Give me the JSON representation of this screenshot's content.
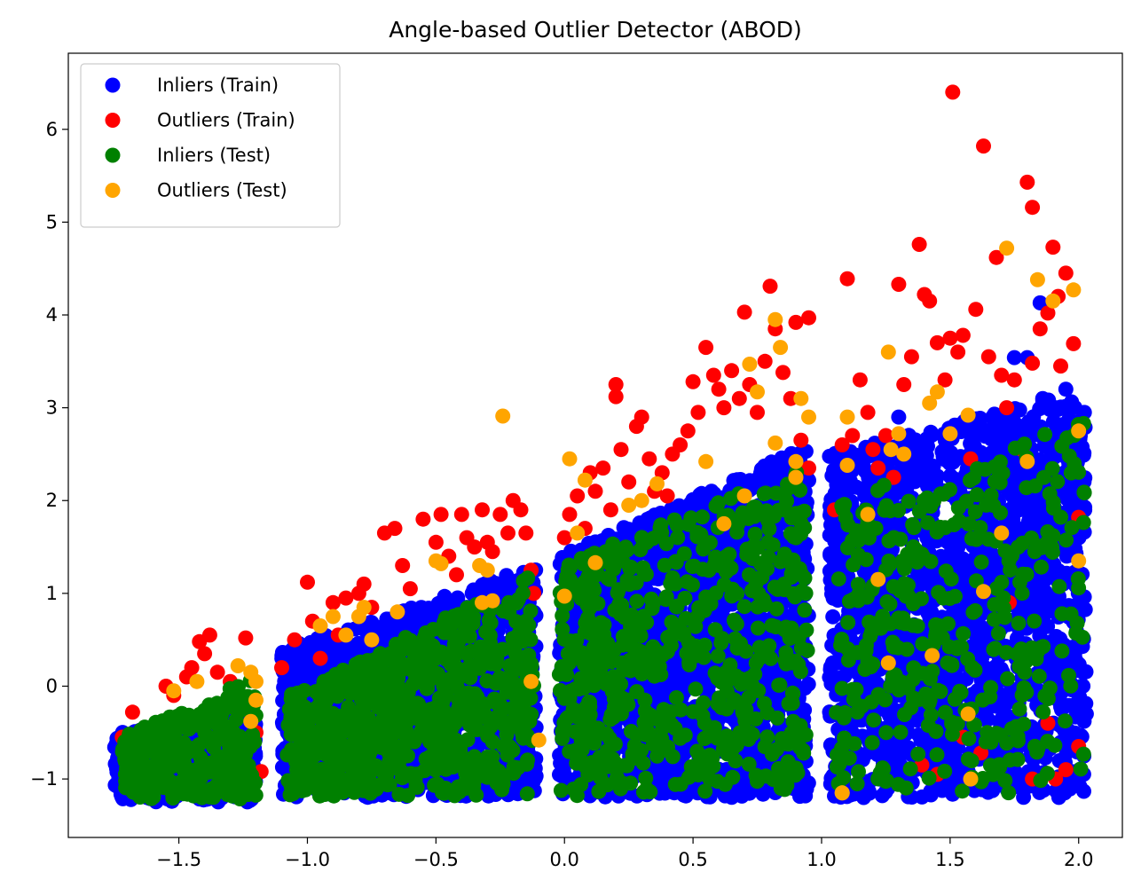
{
  "chart_data": {
    "type": "scatter",
    "title": "Angle-based Outlier Detector (ABOD)",
    "xlabel": "",
    "ylabel": "",
    "xlim": [
      -1.93,
      2.17
    ],
    "ylim": [
      -1.63,
      6.82
    ],
    "xticks": [
      -1.5,
      -1.0,
      -0.5,
      0.0,
      0.5,
      1.0,
      1.5,
      2.0
    ],
    "xtick_labels": [
      "−1.5",
      "−1.0",
      "−0.5",
      "0.0",
      "0.5",
      "1.0",
      "1.5",
      "2.0"
    ],
    "yticks": [
      -1,
      0,
      1,
      2,
      3,
      4,
      5,
      6
    ],
    "ytick_labels": [
      "−1",
      "0",
      "1",
      "2",
      "3",
      "4",
      "5",
      "6"
    ],
    "grid": false,
    "legend_position": "top-left",
    "series": [
      {
        "name": "Inliers (Train)",
        "color": "#0000ff",
        "clusters": [
          {
            "x": [
              -1.75,
              -1.2
            ],
            "y_min": -1.25,
            "y_max_left": -0.5,
            "y_max_right": -0.3,
            "count": 500
          },
          {
            "x": [
              -1.1,
              -0.11
            ],
            "y_min": -1.2,
            "y_max_left": 0.4,
            "y_max_right": 1.3,
            "count": 1400
          },
          {
            "x": [
              -0.02,
              0.95
            ],
            "y_min": -1.2,
            "y_max_left": 1.4,
            "y_max_right": 2.6,
            "count": 1800
          },
          {
            "x": [
              1.03,
              2.03
            ],
            "y_min": -1.2,
            "y_max_left": 2.5,
            "y_max_right": 3.2,
            "count": 1800
          }
        ],
        "highlighted_points": [
          [
            1.85,
            4.13
          ],
          [
            1.75,
            3.54
          ],
          [
            1.8,
            3.54
          ],
          [
            1.86,
            3.1
          ],
          [
            1.95,
            3.2
          ],
          [
            1.3,
            2.9
          ]
        ]
      },
      {
        "name": "Outliers (Train)",
        "color": "#ff0000",
        "x": [
          -1.68,
          -1.72,
          -1.45,
          -1.52,
          -1.55,
          -1.42,
          -1.38,
          -1.4,
          -1.47,
          -1.35,
          -1.3,
          -1.24,
          -1.25,
          -1.2,
          -1.18,
          -1.1,
          -1.05,
          -1.0,
          -0.98,
          -0.95,
          -0.9,
          -0.88,
          -0.85,
          -0.8,
          -0.78,
          -0.75,
          -0.7,
          -0.66,
          -0.63,
          -0.6,
          -0.55,
          -0.5,
          -0.48,
          -0.45,
          -0.42,
          -0.4,
          -0.38,
          -0.35,
          -0.32,
          -0.3,
          -0.28,
          -0.25,
          -0.22,
          -0.2,
          -0.17,
          -0.15,
          -0.13,
          -0.12,
          0.0,
          0.02,
          0.05,
          0.08,
          0.1,
          0.12,
          0.15,
          0.18,
          0.2,
          0.2,
          0.22,
          0.25,
          0.28,
          0.3,
          0.33,
          0.35,
          0.38,
          0.4,
          0.42,
          0.45,
          0.48,
          0.5,
          0.52,
          0.55,
          0.58,
          0.6,
          0.62,
          0.65,
          0.68,
          0.7,
          0.72,
          0.75,
          0.78,
          0.8,
          0.82,
          0.85,
          0.88,
          0.9,
          0.92,
          0.95,
          0.95,
          1.05,
          1.08,
          1.1,
          1.12,
          1.15,
          1.18,
          1.2,
          1.22,
          1.25,
          1.28,
          1.3,
          1.32,
          1.35,
          1.38,
          1.4,
          1.42,
          1.45,
          1.48,
          1.5,
          1.51,
          1.53,
          1.55,
          1.58,
          1.6,
          1.63,
          1.65,
          1.68,
          1.7,
          1.72,
          1.75,
          1.78,
          1.8,
          1.82,
          1.82,
          1.85,
          1.88,
          1.9,
          1.92,
          1.93,
          1.95,
          1.98,
          2.0,
          2.0,
          1.39,
          1.45,
          1.55,
          1.62,
          1.82,
          1.91,
          1.95,
          1.88,
          1.73
        ],
        "y": [
          -0.28,
          -0.55,
          0.2,
          -0.1,
          0.0,
          0.48,
          0.55,
          0.35,
          0.1,
          0.15,
          0.05,
          0.52,
          -0.25,
          -0.5,
          -0.92,
          0.2,
          0.5,
          1.12,
          0.7,
          0.3,
          0.9,
          0.55,
          0.95,
          1.0,
          1.1,
          0.85,
          1.65,
          1.7,
          1.3,
          1.05,
          1.8,
          1.55,
          1.85,
          1.4,
          1.2,
          1.85,
          1.6,
          1.5,
          1.9,
          1.55,
          1.45,
          1.85,
          1.65,
          2.0,
          1.9,
          1.65,
          1.25,
          1.0,
          1.6,
          1.85,
          2.05,
          1.7,
          2.3,
          2.1,
          2.35,
          1.9,
          3.25,
          3.12,
          2.55,
          2.2,
          2.8,
          2.9,
          2.45,
          2.1,
          2.3,
          2.05,
          2.5,
          2.6,
          2.75,
          3.28,
          2.95,
          3.65,
          3.35,
          3.2,
          3.0,
          3.4,
          3.1,
          4.03,
          3.25,
          2.95,
          3.5,
          4.31,
          3.85,
          3.38,
          3.1,
          3.92,
          2.65,
          3.97,
          2.35,
          1.9,
          2.6,
          4.39,
          2.7,
          3.3,
          2.95,
          2.55,
          2.35,
          2.7,
          2.25,
          4.33,
          3.25,
          3.55,
          4.76,
          4.22,
          4.15,
          3.7,
          3.3,
          3.75,
          6.4,
          3.6,
          3.78,
          2.45,
          4.06,
          5.82,
          3.55,
          4.62,
          3.35,
          3.0,
          3.3,
          2.55,
          5.43,
          5.16,
          3.48,
          3.85,
          4.02,
          4.73,
          4.2,
          3.45,
          4.45,
          3.69,
          1.82,
          -0.65,
          -0.85,
          -0.95,
          -0.55,
          -0.72,
          -1.0,
          -1.0,
          -0.9,
          -0.4,
          0.9
        ]
      },
      {
        "name": "Inliers (Test)",
        "color": "#008000",
        "clusters": [
          {
            "x": [
              -1.72,
              -1.2
            ],
            "y_min": -1.22,
            "y_max_left": -0.55,
            "y_max_right": 0.1,
            "count": 280
          },
          {
            "x": [
              -1.08,
              -0.12
            ],
            "y_min": -1.2,
            "y_max_left": -0.1,
            "y_max_right": 1.2,
            "count": 700
          },
          {
            "x": [
              -0.02,
              0.95
            ],
            "y_min": -1.18,
            "y_max_left": 1.3,
            "y_max_right": 2.4,
            "count": 600
          },
          {
            "x": [
              1.05,
              2.03
            ],
            "y_min": -1.15,
            "y_max_left": 2.0,
            "y_max_right": 2.9,
            "count": 380
          }
        ]
      },
      {
        "name": "Outliers (Test)",
        "color": "#ffa500",
        "x": [
          -1.52,
          -1.43,
          -1.27,
          -1.22,
          -1.2,
          -1.2,
          -1.22,
          -0.95,
          -0.9,
          -0.85,
          -0.8,
          -0.78,
          -0.75,
          -0.65,
          -0.5,
          -0.48,
          -0.33,
          -0.3,
          -0.28,
          -0.32,
          -0.24,
          -0.13,
          -0.1,
          0.0,
          0.02,
          0.05,
          0.08,
          0.12,
          0.25,
          0.3,
          0.36,
          0.55,
          0.62,
          0.7,
          0.72,
          0.75,
          0.82,
          0.82,
          0.84,
          0.9,
          0.9,
          0.92,
          0.95,
          1.08,
          1.1,
          1.1,
          1.18,
          1.22,
          1.26,
          1.27,
          1.3,
          1.32,
          1.42,
          1.45,
          1.5,
          1.57,
          1.58,
          1.63,
          1.7,
          1.72,
          1.8,
          1.84,
          1.9,
          1.98,
          2.0,
          2.0,
          1.26,
          1.08,
          1.57,
          1.43
        ],
        "y": [
          -0.05,
          0.05,
          0.22,
          0.15,
          0.05,
          -0.15,
          -0.38,
          0.65,
          0.75,
          0.55,
          0.75,
          0.85,
          0.5,
          0.8,
          1.35,
          1.32,
          1.3,
          1.25,
          0.92,
          0.9,
          2.91,
          0.05,
          -0.58,
          0.97,
          2.45,
          1.65,
          2.22,
          1.33,
          1.95,
          2.0,
          2.18,
          2.42,
          1.75,
          2.05,
          3.47,
          3.17,
          2.62,
          3.95,
          3.65,
          2.42,
          2.25,
          3.1,
          2.9,
          -1.15,
          2.38,
          2.9,
          1.85,
          1.15,
          3.6,
          2.55,
          2.72,
          2.5,
          3.05,
          3.17,
          2.72,
          2.92,
          -1.0,
          1.02,
          1.65,
          4.72,
          2.42,
          4.38,
          4.15,
          4.27,
          2.75,
          1.35,
          0.25,
          -1.15,
          -0.3,
          0.33
        ]
      }
    ]
  }
}
